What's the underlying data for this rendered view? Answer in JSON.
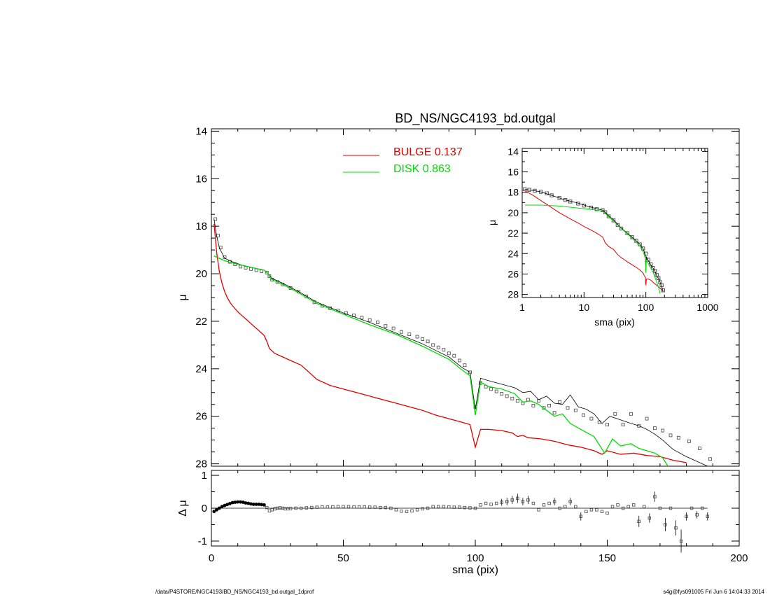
{
  "title": "BD_NS/NGC4193_bd.outgal",
  "footer": {
    "left": "/data/P4STORE/NGC4193/BD_NS/NGC4193_bd.outgal_1dprof",
    "right": "s4g@fys091005  Fri Jun  6 14:04:33 2014"
  },
  "colors": {
    "data": "#000000",
    "model": "#000000",
    "bulge": "#e00000",
    "disk": "#00dd00"
  },
  "legend": [
    {
      "label": "BULGE  0.137",
      "color": "#e00000"
    },
    {
      "label": "DISK  0.863",
      "color": "#00dd00"
    }
  ],
  "chart_data": [
    {
      "type": "line",
      "panel": "main",
      "title": "BD_NS/NGC4193_bd.outgal",
      "xlabel": "",
      "ylabel": "μ",
      "xlim": [
        0,
        200
      ],
      "ylim": [
        28.1,
        13.9
      ],
      "y_inverted": true,
      "xticks": [
        "0",
        "50",
        "100",
        "150",
        "200"
      ],
      "yticks": [
        "14",
        "16",
        "18",
        "20",
        "22",
        "24",
        "26",
        "28"
      ],
      "series": [
        {
          "name": "data",
          "style": "squares",
          "x": [
            1.5,
            2.5,
            3.5,
            5,
            7,
            9,
            11,
            13,
            15,
            17,
            19,
            21,
            22,
            23,
            25,
            27,
            30,
            33,
            36,
            39,
            42,
            45,
            48,
            51,
            54,
            57,
            60,
            63,
            66,
            69,
            72,
            75,
            78,
            80,
            82,
            84,
            86,
            88,
            90,
            92,
            94,
            96,
            98,
            100,
            102,
            104,
            106,
            108,
            110,
            112,
            114,
            116,
            118,
            120,
            122,
            124,
            126,
            128,
            130,
            132,
            135,
            138,
            141,
            144,
            147,
            150,
            153,
            156,
            159,
            162,
            165,
            168,
            171,
            174,
            177,
            181,
            185,
            189
          ],
          "y": [
            17.7,
            18.4,
            18.9,
            19.3,
            19.5,
            19.6,
            19.7,
            19.75,
            19.8,
            19.85,
            19.9,
            19.95,
            20.1,
            20.25,
            20.35,
            20.45,
            20.6,
            20.75,
            20.95,
            21.2,
            21.35,
            21.45,
            21.55,
            21.65,
            21.75,
            21.85,
            21.95,
            22.05,
            22.2,
            22.3,
            22.45,
            22.55,
            22.65,
            22.75,
            22.85,
            23.0,
            23.1,
            23.2,
            23.35,
            23.45,
            23.65,
            23.85,
            24.15,
            25.6,
            24.6,
            24.75,
            24.85,
            24.95,
            25.05,
            25.15,
            25.25,
            25.35,
            25.45,
            25.3,
            25.55,
            25.35,
            25.65,
            25.55,
            25.85,
            25.4,
            25.65,
            25.75,
            25.95,
            26.1,
            26.25,
            26.35,
            25.9,
            26.35,
            25.9,
            26.4,
            26.1,
            26.5,
            26.6,
            26.8,
            26.9,
            27.05,
            27.35,
            27.8
          ]
        },
        {
          "name": "model",
          "style": "line",
          "color": "#000000",
          "x": [
            1,
            2,
            3,
            5,
            8,
            12,
            16,
            20,
            21,
            23,
            27,
            33,
            40,
            50,
            60,
            70,
            80,
            90,
            95,
            98,
            100,
            102,
            105,
            110,
            115,
            118,
            121,
            124,
            127,
            130,
            133,
            136,
            139,
            142,
            145,
            148,
            151,
            155,
            159,
            162,
            165,
            168,
            171,
            175,
            180,
            185,
            188
          ],
          "y": [
            17.7,
            18.4,
            18.9,
            19.35,
            19.5,
            19.65,
            19.75,
            19.85,
            19.95,
            20.2,
            20.4,
            20.75,
            21.2,
            21.65,
            22.05,
            22.5,
            22.95,
            23.5,
            23.95,
            24.15,
            25.7,
            24.4,
            24.5,
            24.65,
            24.8,
            25.0,
            24.95,
            25.3,
            25.15,
            25.45,
            25.5,
            25.1,
            25.6,
            25.7,
            25.9,
            26.3,
            26.0,
            26.15,
            26.3,
            26.4,
            26.55,
            26.75,
            27.0,
            27.4,
            27.7,
            27.95,
            28.1
          ]
        },
        {
          "name": "bulge",
          "style": "line",
          "color": "#e00000",
          "x": [
            1,
            1.5,
            2,
            3,
            4,
            5,
            6,
            7,
            8,
            10,
            12,
            14,
            16,
            18,
            20,
            21,
            22,
            24,
            27,
            30,
            34,
            38,
            40,
            45,
            50,
            55,
            60,
            65,
            70,
            75,
            80,
            85,
            90,
            95,
            98,
            100,
            102,
            105,
            110,
            114,
            116,
            118,
            120,
            125,
            130,
            135,
            140,
            145,
            148,
            150,
            155,
            160,
            165,
            170,
            175,
            180
          ],
          "y": [
            17.9,
            18.5,
            19.1,
            19.9,
            20.4,
            20.75,
            21.0,
            21.2,
            21.35,
            21.6,
            21.8,
            22.0,
            22.2,
            22.4,
            22.6,
            22.85,
            23.15,
            23.35,
            23.5,
            23.65,
            23.85,
            24.25,
            24.45,
            24.7,
            24.85,
            25.0,
            25.15,
            25.3,
            25.45,
            25.6,
            25.75,
            25.95,
            26.1,
            26.25,
            26.35,
            27.3,
            26.55,
            26.55,
            26.6,
            26.7,
            26.85,
            26.8,
            26.9,
            26.95,
            27.05,
            27.2,
            27.3,
            27.45,
            27.6,
            27.45,
            27.6,
            27.55,
            27.65,
            27.7,
            27.85,
            27.95
          ]
        },
        {
          "name": "disk",
          "style": "line",
          "color": "#00dd00",
          "x": [
            1,
            3,
            5,
            8,
            12,
            16,
            20,
            21,
            23,
            27,
            33,
            40,
            50,
            60,
            70,
            80,
            90,
            95,
            98,
            100,
            102,
            105,
            110,
            115,
            118,
            121,
            124,
            127,
            130,
            133,
            136,
            140,
            145,
            149,
            152,
            155,
            159,
            162,
            165,
            168,
            171,
            173
          ],
          "y": [
            19.25,
            19.35,
            19.45,
            19.55,
            19.65,
            19.75,
            19.85,
            19.95,
            20.25,
            20.45,
            20.8,
            21.25,
            21.7,
            22.15,
            22.55,
            23.05,
            23.6,
            24.05,
            24.3,
            25.95,
            24.55,
            24.75,
            24.85,
            25.05,
            25.4,
            25.35,
            25.5,
            25.75,
            26.0,
            25.9,
            26.3,
            26.55,
            26.85,
            27.55,
            26.95,
            27.25,
            27.15,
            27.35,
            27.45,
            27.55,
            27.75,
            28.1
          ]
        }
      ]
    },
    {
      "type": "scatter",
      "panel": "residual",
      "xlabel": "sma (pix)",
      "ylabel": "Δ μ",
      "xlim": [
        0,
        200
      ],
      "ylim": [
        -1.15,
        1.15
      ],
      "xticks": [
        "0",
        "50",
        "100",
        "150",
        "200"
      ],
      "yticks": [
        "1",
        "0",
        "-1"
      ],
      "zero_line": true,
      "series": [
        {
          "name": "residuals",
          "x": [
            1,
            2,
            3,
            4,
            5,
            6,
            7,
            8,
            9,
            10,
            11,
            12,
            13,
            14,
            15,
            16,
            17,
            18,
            19,
            20,
            21,
            22,
            23,
            24,
            25,
            26,
            27,
            28,
            29,
            30,
            32,
            34,
            36,
            38,
            40,
            42,
            44,
            46,
            48,
            50,
            52,
            54,
            56,
            58,
            60,
            62,
            64,
            66,
            68,
            70,
            72,
            74,
            76,
            78,
            80,
            82,
            84,
            86,
            88,
            90,
            92,
            94,
            96,
            98,
            100,
            102,
            104,
            106,
            108,
            110,
            112,
            114,
            116,
            118,
            120,
            122,
            124,
            126,
            128,
            130,
            132,
            134,
            136,
            138,
            140,
            142,
            144,
            146,
            148,
            150,
            152,
            154,
            156,
            158,
            160,
            162,
            164,
            166,
            168,
            170,
            172,
            174,
            176,
            178,
            180,
            182,
            184,
            186,
            188
          ],
          "y": [
            -0.1,
            -0.05,
            0.0,
            0.05,
            0.08,
            0.11,
            0.14,
            0.17,
            0.18,
            0.19,
            0.19,
            0.18,
            0.16,
            0.15,
            0.13,
            0.12,
            0.12,
            0.12,
            0.11,
            0.1,
            0.02,
            -0.08,
            -0.05,
            -0.02,
            0.0,
            0.01,
            0.0,
            -0.02,
            -0.02,
            -0.01,
            0.0,
            0.0,
            0.01,
            0.02,
            0.03,
            0.04,
            0.04,
            0.04,
            0.05,
            0.05,
            0.05,
            0.04,
            0.04,
            0.04,
            0.03,
            0.03,
            0.02,
            0.02,
            0.0,
            -0.05,
            -0.09,
            -0.1,
            -0.08,
            -0.05,
            -0.02,
            0.0,
            0.05,
            0.05,
            0.05,
            0.04,
            0.03,
            0.03,
            0.02,
            0.01,
            0.0,
            0.1,
            0.15,
            0.12,
            0.15,
            0.18,
            0.2,
            0.25,
            0.3,
            0.2,
            0.25,
            0.15,
            -0.05,
            0.1,
            0.15,
            0.2,
            0.0,
            0.05,
            0.2,
            0.05,
            -0.25,
            -0.1,
            -0.05,
            -0.05,
            -0.1,
            -0.15,
            0.05,
            0.1,
            0.0,
            0.05,
            0.1,
            -0.4,
            0.05,
            -0.3,
            0.35,
            0.0,
            -0.5,
            0.0,
            -0.6,
            -1.0,
            -0.25,
            0.0,
            -0.2,
            0.0,
            -0.25
          ]
        }
      ]
    },
    {
      "type": "line",
      "panel": "inset",
      "xlabel": "sma (pix)",
      "ylabel": "μ",
      "x_scale": "log",
      "xlim": [
        1,
        1000
      ],
      "ylim": [
        28.3,
        13.7
      ],
      "y_inverted": true,
      "xticks": [
        "1",
        "10",
        "100",
        "1000"
      ],
      "yticks": [
        "14",
        "16",
        "18",
        "20",
        "22",
        "24",
        "26",
        "28"
      ],
      "series": [
        {
          "name": "data",
          "style": "squares",
          "x": [
            1.1,
            1.3,
            1.6,
            2,
            2.5,
            3,
            4,
            5,
            6,
            8,
            10,
            13,
            16,
            20,
            22,
            25,
            30,
            35,
            40,
            50,
            60,
            70,
            80,
            90,
            100,
            110,
            120,
            130,
            140,
            150,
            160,
            170,
            180,
            190
          ],
          "y": [
            17.7,
            17.75,
            17.85,
            17.95,
            18.1,
            18.3,
            18.55,
            18.75,
            18.9,
            19.1,
            19.3,
            19.5,
            19.65,
            19.75,
            19.95,
            20.35,
            20.75,
            21.2,
            21.55,
            22.0,
            22.4,
            22.75,
            23.1,
            23.5,
            24.0,
            24.6,
            25.05,
            25.4,
            25.7,
            26.1,
            26.4,
            26.8,
            27.1,
            27.6
          ]
        },
        {
          "name": "model",
          "style": "line",
          "color": "#000000",
          "x": [
            1.1,
            2,
            3,
            5,
            8,
            12,
            16,
            20,
            22,
            25,
            30,
            40,
            50,
            60,
            70,
            80,
            90,
            95,
            98,
            100,
            102,
            110,
            120,
            130,
            140,
            150,
            160,
            170,
            180,
            190
          ],
          "y": [
            17.7,
            17.95,
            18.3,
            18.75,
            19.05,
            19.4,
            19.6,
            19.75,
            19.95,
            20.3,
            20.7,
            21.5,
            22.0,
            22.4,
            22.75,
            23.1,
            23.5,
            23.9,
            24.1,
            25.7,
            24.3,
            24.7,
            25.1,
            25.4,
            25.7,
            26.2,
            26.4,
            26.8,
            27.2,
            27.7
          ]
        },
        {
          "name": "bulge",
          "style": "line",
          "color": "#e00000",
          "x": [
            1.1,
            1.5,
            2,
            3,
            4,
            6,
            8,
            10,
            13,
            16,
            18,
            20,
            21,
            22,
            25,
            30,
            35,
            40,
            45,
            50,
            60,
            70,
            80,
            90,
            95,
            98,
            100,
            102,
            110,
            120,
            130,
            150,
            170,
            190
          ],
          "y": [
            17.85,
            18.3,
            18.8,
            19.5,
            20.0,
            20.6,
            21.0,
            21.35,
            21.7,
            22.0,
            22.2,
            22.4,
            22.65,
            22.95,
            23.3,
            23.6,
            24.1,
            24.4,
            24.6,
            24.8,
            25.1,
            25.35,
            25.6,
            25.9,
            26.2,
            26.3,
            27.1,
            26.5,
            26.5,
            26.6,
            26.8,
            27.1,
            27.4,
            27.7
          ]
        },
        {
          "name": "disk",
          "style": "line",
          "color": "#00dd00",
          "x": [
            1.1,
            2,
            3,
            4,
            5,
            8,
            12,
            16,
            20,
            22,
            25,
            30,
            40,
            50,
            60,
            70,
            80,
            90,
            95,
            98,
            100,
            102,
            110,
            120,
            130,
            140,
            150,
            160,
            170
          ],
          "y": [
            19.25,
            19.25,
            19.3,
            19.35,
            19.4,
            19.55,
            19.65,
            19.75,
            19.85,
            20.05,
            20.4,
            20.8,
            21.55,
            22.05,
            22.5,
            22.9,
            23.3,
            23.8,
            24.2,
            24.5,
            25.9,
            24.6,
            25.0,
            25.4,
            25.8,
            26.3,
            26.8,
            27.3,
            27.9
          ]
        }
      ]
    }
  ]
}
